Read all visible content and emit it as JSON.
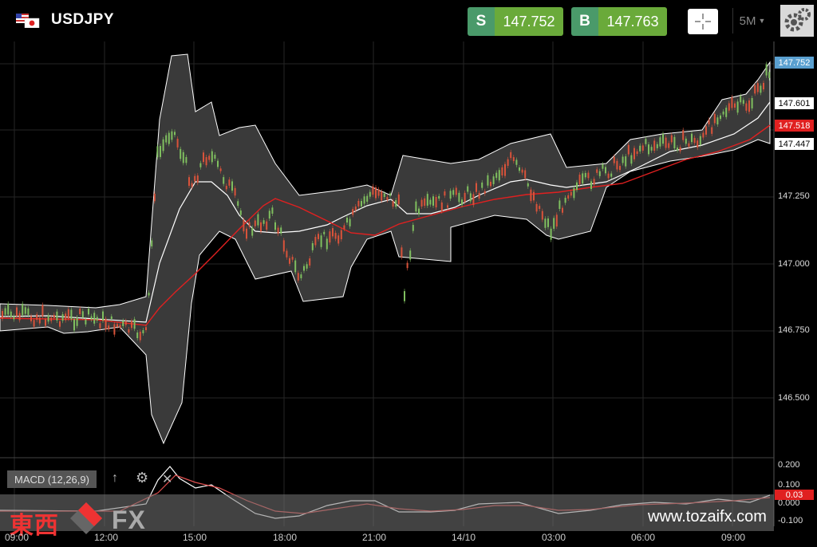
{
  "header": {
    "symbol": "USDJPY",
    "flag_icon": "us-jp-flag-icon",
    "sell": {
      "label": "S",
      "price": "147.752"
    },
    "buy": {
      "label": "B",
      "price": "147.763"
    },
    "crosshair_icon": "crosshair-icon",
    "timeframe": "5M",
    "settings_icon": "gear-icon"
  },
  "colors": {
    "sell": "#4a9a6a",
    "buy_value": "#6aaa3a",
    "up_candle": "#7fbf5f",
    "down_candle": "#d9533a",
    "ma_line": "#e02020",
    "band_fill": "#3a3a3a",
    "price_badge": "#5aa0d0"
  },
  "price_axis": {
    "ticks": [
      "147.250",
      "147.000",
      "146.750",
      "146.500"
    ],
    "current": "147.752",
    "upper_band": "147.601",
    "ma": "147.518",
    "lower_band": "147.447"
  },
  "macd": {
    "label": "MACD (12,26,9)",
    "ticks": [
      "0.200",
      "0.100",
      "0.000",
      "-0.100"
    ],
    "current": "0.03"
  },
  "time_axis": [
    "09:00",
    "12:00",
    "15:00",
    "18:00",
    "21:00",
    "14/10",
    "03:00",
    "06:00",
    "09:00"
  ],
  "watermark": {
    "kanji": "東西",
    "fx": "FX",
    "url": "www.tozaifx.com"
  }
}
